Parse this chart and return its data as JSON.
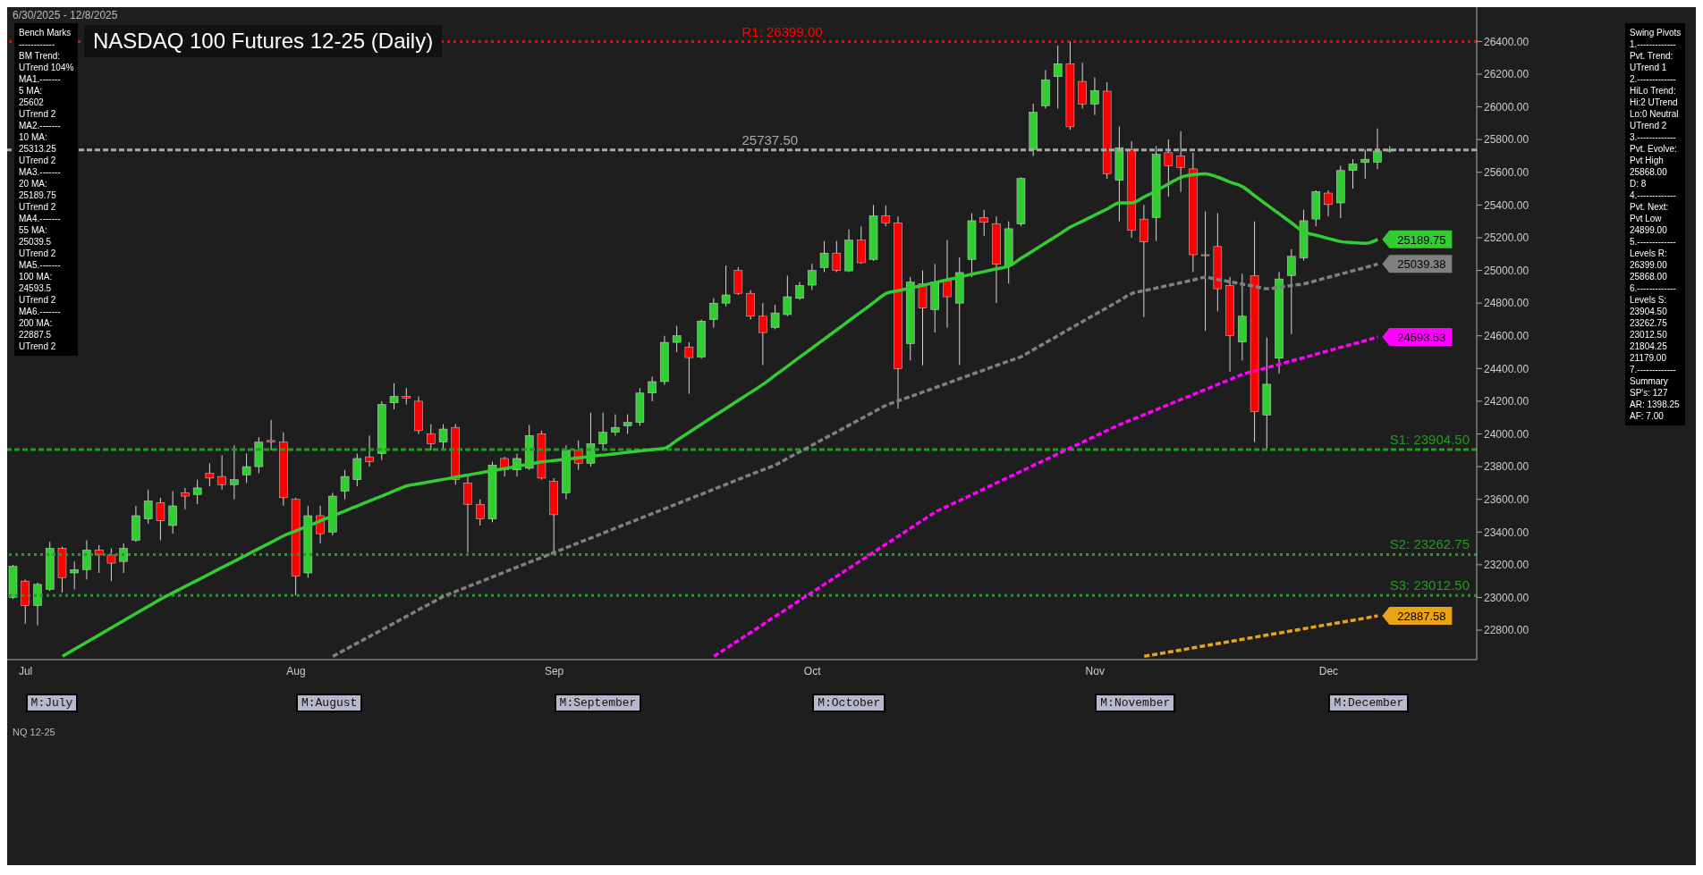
{
  "chart_data": {
    "type": "candlestick",
    "title": "NASDAQ 100 Futures 12-25 (Daily)",
    "subtitle": "6/30/2025 - 12/8/2025",
    "categories": [
      null,
      "Jul",
      null,
      null,
      null,
      null,
      null,
      null,
      null,
      null,
      null,
      null,
      null,
      null,
      null,
      null,
      null,
      null,
      null,
      null,
      null,
      null,
      null,
      "Aug",
      null,
      null,
      null,
      null,
      null,
      null,
      null,
      null,
      null,
      null,
      null,
      null,
      null,
      null,
      null,
      null,
      null,
      null,
      null,
      null,
      "Sep",
      null,
      null,
      null,
      null,
      null,
      null,
      null,
      null,
      null,
      null,
      null,
      null,
      null,
      null,
      null,
      null,
      null,
      null,
      null,
      null,
      "Oct",
      null,
      null,
      null,
      null,
      null,
      null,
      null,
      null,
      null,
      null,
      null,
      null,
      null,
      null,
      null,
      null,
      null,
      null,
      null,
      null,
      null,
      null,
      "Nov",
      null,
      null,
      null,
      null,
      null,
      null,
      null,
      null,
      null,
      null,
      null,
      null,
      null,
      null,
      null,
      null,
      null,
      null,
      "Dec",
      null,
      null,
      null,
      null,
      null
    ],
    "ohlc": [
      [
        23000,
        23200,
        22990,
        23190
      ],
      [
        23100,
        23110,
        22840,
        22950
      ],
      [
        22950,
        23090,
        22830,
        23080
      ],
      [
        23050,
        23340,
        23040,
        23300
      ],
      [
        23300,
        23310,
        23030,
        23120
      ],
      [
        23150,
        23220,
        23050,
        23170
      ],
      [
        23170,
        23350,
        23110,
        23290
      ],
      [
        23290,
        23320,
        23150,
        23260
      ],
      [
        23260,
        23300,
        23100,
        23210
      ],
      [
        23220,
        23330,
        23150,
        23300
      ],
      [
        23350,
        23560,
        23340,
        23500
      ],
      [
        23480,
        23660,
        23450,
        23590
      ],
      [
        23580,
        23610,
        23350,
        23470
      ],
      [
        23440,
        23650,
        23390,
        23560
      ],
      [
        23640,
        23670,
        23540,
        23620
      ],
      [
        23630,
        23720,
        23570,
        23670
      ],
      [
        23760,
        23820,
        23680,
        23730
      ],
      [
        23740,
        23870,
        23660,
        23690
      ],
      [
        23690,
        23930,
        23600,
        23720
      ],
      [
        23750,
        23880,
        23700,
        23800
      ],
      [
        23800,
        23980,
        23760,
        23950
      ],
      [
        23960,
        24085,
        23900,
        23950
      ],
      [
        23950,
        24010,
        23560,
        23610
      ],
      [
        23600,
        23610,
        23012.5,
        23130
      ],
      [
        23150,
        23560,
        23120,
        23500
      ],
      [
        23500,
        23560,
        23330,
        23390
      ],
      [
        23400,
        23640,
        23380,
        23620
      ],
      [
        23650,
        23780,
        23600,
        23740
      ],
      [
        23720,
        23880,
        23680,
        23850
      ],
      [
        23860,
        23990,
        23800,
        23830
      ],
      [
        23880,
        24200,
        23840,
        24180
      ],
      [
        24190,
        24310,
        24150,
        24230
      ],
      [
        24230,
        24280,
        24180,
        24220
      ],
      [
        24200,
        24230,
        24000,
        24020
      ],
      [
        24000,
        24060,
        23900,
        23940
      ],
      [
        23950,
        24060,
        23900,
        24030
      ],
      [
        24040,
        24060,
        23690,
        23720
      ],
      [
        23700,
        23740,
        23275,
        23570
      ],
      [
        23570,
        23600,
        23440,
        23480
      ],
      [
        23480,
        23830,
        23460,
        23810
      ],
      [
        23850,
        23860,
        23740,
        23780
      ],
      [
        23780,
        23880,
        23740,
        23850
      ],
      [
        23790,
        24055,
        23780,
        23990
      ],
      [
        24000,
        24020,
        23720,
        23730
      ],
      [
        23710,
        23730,
        23262.75,
        23506
      ],
      [
        23640,
        23930,
        23600,
        23900
      ],
      [
        23900,
        23960,
        23780,
        23820
      ],
      [
        23820,
        24130,
        23800,
        23940
      ],
      [
        23940,
        24130,
        23900,
        24010
      ],
      [
        24010,
        24120,
        23990,
        24040
      ],
      [
        24050,
        24120,
        24000,
        24070
      ],
      [
        24070,
        24280,
        24050,
        24250
      ],
      [
        24250,
        24350,
        24200,
        24320
      ],
      [
        24320,
        24600,
        24300,
        24560
      ],
      [
        24560,
        24660,
        24500,
        24600
      ],
      [
        24532,
        24560,
        24245,
        24467
      ],
      [
        24470,
        24700,
        24460,
        24690
      ],
      [
        24700,
        24830,
        24650,
        24800
      ],
      [
        24800,
        25030,
        24780,
        24850
      ],
      [
        25000,
        25020,
        24850,
        24860
      ],
      [
        24860,
        24880,
        24700,
        24720
      ],
      [
        24720,
        24800,
        24421,
        24620
      ],
      [
        24651,
        24790,
        24640,
        24740
      ],
      [
        24730,
        24968,
        24720,
        24839
      ],
      [
        24829,
        24930,
        24820,
        24908
      ],
      [
        24910,
        25040,
        24880,
        25000
      ],
      [
        25017,
        25180,
        24990,
        25106
      ],
      [
        25106,
        25180,
        24990,
        25000
      ],
      [
        24997,
        25250,
        24990,
        25185
      ],
      [
        25185,
        25270,
        25040,
        25047
      ],
      [
        25067,
        25400,
        25060,
        25334
      ],
      [
        25334,
        25397,
        25270,
        25290
      ],
      [
        25290,
        25330,
        24155,
        24400
      ],
      [
        24552,
        24960,
        24450,
        24928
      ],
      [
        24918,
        25000,
        24420,
        24770
      ],
      [
        24760,
        25040,
        24620,
        24928
      ],
      [
        24938,
        25186,
        24650,
        24839
      ],
      [
        24800,
        25080,
        24421,
        24987
      ],
      [
        25067,
        25350,
        24960,
        25304
      ],
      [
        25324,
        25370,
        25210,
        25294
      ],
      [
        25284,
        25330,
        24800,
        25037
      ],
      [
        25027,
        25300,
        24920,
        25255
      ],
      [
        25284,
        25570,
        25270,
        25562
      ],
      [
        25740,
        26020,
        25700,
        25967
      ],
      [
        26007,
        26225,
        25990,
        26165
      ],
      [
        26185,
        26375,
        25990,
        26264
      ],
      [
        26264,
        26399,
        25860,
        25878
      ],
      [
        26156,
        26270,
        25990,
        26017
      ],
      [
        26017,
        26180,
        25950,
        26100
      ],
      [
        26096,
        26150,
        25560,
        25591
      ],
      [
        25552,
        25880,
        25300,
        25750
      ],
      [
        25740,
        25790,
        25200,
        25245
      ],
      [
        25314,
        25400,
        24715,
        25175
      ],
      [
        25324,
        25760,
        25180,
        25710
      ],
      [
        25720,
        25800,
        25450,
        25641
      ],
      [
        25700,
        25851,
        25480,
        25630
      ],
      [
        25621,
        25720,
        24990,
        25096
      ],
      [
        25096,
        25360,
        24631,
        25090
      ],
      [
        25146,
        25350,
        24750,
        24888
      ],
      [
        24908,
        24960,
        24380,
        24601
      ],
      [
        24562,
        24980,
        24450,
        24720
      ],
      [
        24968,
        25300,
        23950,
        24136
      ],
      [
        24116,
        24590,
        23904.5,
        24304
      ],
      [
        24463,
        24990,
        24370,
        24948
      ],
      [
        24968,
        25130,
        24610,
        25086
      ],
      [
        25076,
        25370,
        25060,
        25304
      ],
      [
        25314,
        25490,
        25270,
        25482
      ],
      [
        25473,
        25490,
        25330,
        25403
      ],
      [
        25413,
        25640,
        25320,
        25611
      ],
      [
        25611,
        25680,
        25500,
        25651
      ],
      [
        25660,
        25740,
        25560,
        25680
      ],
      [
        25661,
        25868,
        25620,
        25730
      ],
      [
        25730,
        25760,
        25720,
        25737.5
      ]
    ],
    "series": [
      {
        "type": "line",
        "color": "#32cd32",
        "line_style": "solid",
        "values": [
          null,
          null,
          null,
          null,
          22640,
          22684,
          22728,
          22771,
          22815,
          22859,
          22903,
          22946,
          22990,
          23029,
          23068,
          23106,
          23145,
          23184,
          23222,
          23261,
          23300,
          23338,
          23377,
          23408,
          23438,
          23469,
          23499,
          23530,
          23560,
          23591,
          23621,
          23652,
          23682,
          23695,
          23709,
          23722,
          23736,
          23749,
          23762,
          23776,
          23789,
          23802,
          23816,
          23829,
          23837,
          23846,
          23854,
          23863,
          23871,
          23879,
          23888,
          23896,
          23905,
          23913,
          23962,
          24011,
          24060,
          24109,
          24157,
          24206,
          24255,
          24304,
          24360,
          24415,
          24471,
          24526,
          24582,
          24637,
          24693,
          24748,
          24804,
          24859,
          24876,
          24893,
          24909,
          24926,
          24943,
          24960,
          24977,
          24993,
          25010,
          25027,
          25075,
          25122,
          25170,
          25217,
          25265,
          25302,
          25339,
          25376,
          25413,
          25413,
          25450,
          25487,
          25530,
          25570,
          25585,
          25591,
          25570,
          25540,
          25512,
          25456,
          25400,
          25345,
          25290,
          25235,
          25215,
          25195,
          25176,
          25170,
          25166,
          25189.75,
          null
        ],
        "value_labels": [
          null,
          null,
          null,
          null,
          null,
          null,
          null,
          null,
          null,
          null,
          null,
          null,
          null,
          null,
          null,
          null,
          null,
          null,
          null,
          null,
          null,
          null,
          null,
          null,
          null,
          null,
          null,
          null,
          null,
          null,
          null,
          null,
          null,
          null,
          null,
          null,
          null,
          null,
          null,
          null,
          null,
          null,
          null,
          null,
          null,
          null,
          null,
          null,
          null,
          null,
          null,
          null,
          null,
          null,
          null,
          null,
          null,
          null,
          null,
          null,
          null,
          null,
          null,
          null,
          null,
          null,
          null,
          null,
          null,
          null,
          null,
          null,
          null,
          null,
          null,
          null,
          null,
          null,
          null,
          null,
          null,
          null,
          null,
          null,
          null,
          null,
          null,
          null,
          null,
          null,
          null,
          null,
          null,
          null,
          null,
          null,
          null,
          null,
          null,
          null,
          null,
          null,
          null,
          null,
          null,
          null,
          null,
          null,
          null,
          null,
          null,
          "25189.75",
          null
        ]
      },
      {
        "type": "line",
        "color": "#808080",
        "line_style": "dashed",
        "values": [
          null,
          null,
          null,
          null,
          null,
          null,
          null,
          null,
          null,
          null,
          null,
          null,
          null,
          null,
          null,
          null,
          null,
          null,
          null,
          null,
          null,
          null,
          null,
          null,
          null,
          null,
          22640,
          22681,
          22722,
          22762,
          22803,
          22844,
          22885,
          22926,
          22966,
          23007,
          23037,
          23067,
          23096,
          23126,
          23156,
          23186,
          23216,
          23245,
          23275,
          23305,
          23335,
          23364,
          23394,
          23424,
          23454,
          23484,
          23513,
          23543,
          23573,
          23603,
          23632,
          23662,
          23692,
          23722,
          23752,
          23781,
          23811,
          23851,
          23892,
          23932,
          23973,
          24013,
          24054,
          24094,
          24135,
          24175,
          24202,
          24229,
          24256,
          24283,
          24310,
          24338,
          24365,
          24392,
          24419,
          24446,
          24473,
          24516,
          24559,
          24602,
          24645,
          24688,
          24731,
          24773,
          24816,
          24859,
          24876,
          24892,
          24909,
          24925,
          24942,
          24958,
          24944,
          24930,
          24916,
          24902,
          24888,
          24898,
          24908,
          24918,
          24938,
          24958,
          24978,
          24998,
          25018,
          25039.38,
          null
        ],
        "value_labels": [
          null,
          null,
          null,
          null,
          null,
          null,
          null,
          null,
          null,
          null,
          null,
          null,
          null,
          null,
          null,
          null,
          null,
          null,
          null,
          null,
          null,
          null,
          null,
          null,
          null,
          null,
          null,
          null,
          null,
          null,
          null,
          null,
          null,
          null,
          null,
          null,
          null,
          null,
          null,
          null,
          null,
          null,
          null,
          null,
          null,
          null,
          null,
          null,
          null,
          null,
          null,
          null,
          null,
          null,
          null,
          null,
          null,
          null,
          null,
          null,
          null,
          null,
          null,
          null,
          null,
          null,
          null,
          null,
          null,
          null,
          null,
          null,
          null,
          null,
          null,
          null,
          null,
          null,
          null,
          null,
          null,
          null,
          null,
          null,
          null,
          null,
          null,
          null,
          null,
          null,
          null,
          null,
          null,
          null,
          null,
          null,
          null,
          null,
          null,
          null,
          null,
          null,
          null,
          null,
          null,
          null,
          null,
          null,
          null,
          null,
          null,
          "25039.38",
          null
        ]
      },
      {
        "type": "line",
        "color": "#ff00ff",
        "line_style": "dashed",
        "values": [
          null,
          null,
          null,
          null,
          null,
          null,
          null,
          null,
          null,
          null,
          null,
          null,
          null,
          null,
          null,
          null,
          null,
          null,
          null,
          null,
          null,
          null,
          null,
          null,
          null,
          null,
          null,
          null,
          null,
          null,
          null,
          null,
          null,
          null,
          null,
          null,
          null,
          null,
          null,
          null,
          null,
          null,
          null,
          null,
          null,
          null,
          null,
          null,
          null,
          null,
          null,
          null,
          null,
          null,
          null,
          null,
          null,
          22640,
          22689,
          22738,
          22787,
          22836,
          22885,
          22934,
          22983,
          23032,
          23081,
          23130,
          23179,
          23228,
          23277,
          23326,
          23375,
          23424,
          23473,
          23522,
          23558,
          23593,
          23629,
          23665,
          23701,
          23736,
          23772,
          23808,
          23843,
          23879,
          23915,
          23950,
          23986,
          24022,
          24057,
          24088,
          24118,
          24149,
          24180,
          24211,
          24241,
          24272,
          24303,
          24333,
          24364,
          24385,
          24405,
          24426,
          24447,
          24467,
          24488,
          24509,
          24530,
          24550,
          24571,
          24593.53,
          null
        ],
        "value_labels": [
          null,
          null,
          null,
          null,
          null,
          null,
          null,
          null,
          null,
          null,
          null,
          null,
          null,
          null,
          null,
          null,
          null,
          null,
          null,
          null,
          null,
          null,
          null,
          null,
          null,
          null,
          null,
          null,
          null,
          null,
          null,
          null,
          null,
          null,
          null,
          null,
          null,
          null,
          null,
          null,
          null,
          null,
          null,
          null,
          null,
          null,
          null,
          null,
          null,
          null,
          null,
          null,
          null,
          null,
          null,
          null,
          null,
          null,
          null,
          null,
          null,
          null,
          null,
          null,
          null,
          null,
          null,
          null,
          null,
          null,
          null,
          null,
          null,
          null,
          null,
          null,
          null,
          null,
          null,
          null,
          null,
          null,
          null,
          null,
          null,
          null,
          null,
          null,
          null,
          null,
          null,
          null,
          null,
          null,
          null,
          null,
          null,
          null,
          null,
          null,
          null,
          null,
          null,
          null,
          null,
          null,
          null,
          null,
          null,
          null,
          null,
          "24593.53",
          null
        ]
      },
      {
        "type": "line",
        "color": "#e8a317",
        "line_style": "dashed",
        "values": [
          null,
          null,
          null,
          null,
          null,
          null,
          null,
          null,
          null,
          null,
          null,
          null,
          null,
          null,
          null,
          null,
          null,
          null,
          null,
          null,
          null,
          null,
          null,
          null,
          null,
          null,
          null,
          null,
          null,
          null,
          null,
          null,
          null,
          null,
          null,
          null,
          null,
          null,
          null,
          null,
          null,
          null,
          null,
          null,
          null,
          null,
          null,
          null,
          null,
          null,
          null,
          null,
          null,
          null,
          null,
          null,
          null,
          null,
          null,
          null,
          null,
          null,
          null,
          null,
          null,
          null,
          null,
          null,
          null,
          null,
          null,
          null,
          null,
          null,
          null,
          null,
          null,
          null,
          null,
          null,
          null,
          null,
          null,
          null,
          null,
          null,
          null,
          null,
          null,
          null,
          null,
          null,
          22640,
          22653,
          22666,
          22679,
          22692,
          22705,
          22718,
          22731,
          22744,
          22757,
          22770,
          22783,
          22796,
          22809,
          22822,
          22835,
          22848,
          22861,
          22874,
          22887.58,
          null
        ],
        "value_labels": [
          null,
          null,
          null,
          null,
          null,
          null,
          null,
          null,
          null,
          null,
          null,
          null,
          null,
          null,
          null,
          null,
          null,
          null,
          null,
          null,
          null,
          null,
          null,
          null,
          null,
          null,
          null,
          null,
          null,
          null,
          null,
          null,
          null,
          null,
          null,
          null,
          null,
          null,
          null,
          null,
          null,
          null,
          null,
          null,
          null,
          null,
          null,
          null,
          null,
          null,
          null,
          null,
          null,
          null,
          null,
          null,
          null,
          null,
          null,
          null,
          null,
          null,
          null,
          null,
          null,
          null,
          null,
          null,
          null,
          null,
          null,
          null,
          null,
          null,
          null,
          null,
          null,
          null,
          null,
          null,
          null,
          null,
          null,
          null,
          null,
          null,
          null,
          null,
          null,
          null,
          null,
          null,
          null,
          null,
          null,
          null,
          null,
          null,
          null,
          null,
          null,
          null,
          null,
          null,
          null,
          null,
          null,
          null,
          null,
          null,
          null,
          "22887.58",
          null
        ]
      }
    ],
    "ylim": [
      22620,
      26610
    ],
    "yticks": [
      {
        "value": 22800,
        "label": "22800.00"
      },
      {
        "value": 23000,
        "label": "23000.00"
      },
      {
        "value": 23200,
        "label": "23200.00"
      },
      {
        "value": 23400,
        "label": "23400.00"
      },
      {
        "value": 23600,
        "label": "23600.00"
      },
      {
        "value": 23800,
        "label": "23800.00"
      },
      {
        "value": 24000,
        "label": "24000.00"
      },
      {
        "value": 24200,
        "label": "24200.00"
      },
      {
        "value": 24400,
        "label": "24400.00"
      },
      {
        "value": 24600,
        "label": "24600.00"
      },
      {
        "value": 24800,
        "label": "24800.00"
      },
      {
        "value": 25000,
        "label": "25000.00"
      },
      {
        "value": 25200,
        "label": "25200.00"
      },
      {
        "value": 25400,
        "label": "25400.00"
      },
      {
        "value": 25600,
        "label": "25600.00"
      },
      {
        "value": 25800,
        "label": "25800.00"
      },
      {
        "value": 26000,
        "label": "26000.00"
      },
      {
        "value": 26200,
        "label": "26200.00"
      },
      {
        "value": 26400,
        "label": "26400.00"
      }
    ],
    "ref_lines": [
      {
        "axis": "y",
        "value": 26399,
        "label": "R1: 26399.00",
        "color": "#ff0000",
        "line_style": "dotted"
      },
      {
        "axis": "y",
        "value": 25737.5,
        "label": "25737.50",
        "color": "#aaaaaa",
        "line_style": "dashed"
      },
      {
        "axis": "y",
        "value": 23904.5,
        "label": "S1: 23904.50",
        "color": "#1f9e1f",
        "line_style": "dashed"
      },
      {
        "axis": "y",
        "value": 23262.75,
        "label": "S2: 23262.75",
        "color": "#1f9e1f",
        "line_style": "dotted"
      },
      {
        "axis": "y",
        "value": 23012.5,
        "label": "S3: 23012.50",
        "color": "#1f9e1f",
        "line_style": "dotted"
      }
    ],
    "annotations": [
      "Bench Marks\n------------\nBM Trend:\nUTrend 104%\nMA1.-------\n5 MA:\n25602\nUTrend 2\nMA2.-------\n10 MA:\n25313.25\nUTrend 2\nMA3.-------\n20 MA:\n25189.75\nUTrend 2\nMA4.-------\n55 MA:\n25039.5\nUTrend 2\nMA5.-------\n100 MA:\n24593.5\nUTrend 2\nMA6.-------\n200 MA:\n22887.5\nUTrend 2",
      "Swing Pivots\n1.-------------\nPvt. Trend:\nUTrend 1\n2.-------------\nHiLo Trend:\nHi:2 UTrend\nLo:0 Neutral\nUTrend 2\n3.-------------\nPvt. Evolve:\nPvt High\n25868.00\nD: 8\n4.-------------\nPvt. Next:\nPvt Low\n24899.00\n5.-------------\nLevels R:\n26399.00\n25868.00\n6.-------------\nLevels S:\n23904.50\n23262.75\n23012.50\n21804.25\n21179.00\n7.-------------\nSummary\nSP's: 127\nAR: 1398.25\nAF: 7.00",
      "NQ 12-25",
      "M:July",
      "M:August",
      "M:September",
      "M:October",
      "M:November",
      "M:December"
    ]
  }
}
